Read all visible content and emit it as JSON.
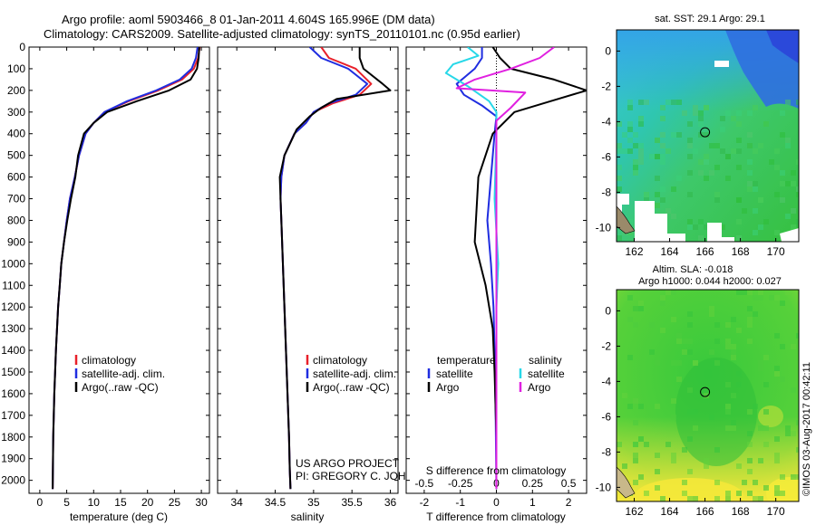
{
  "header": {
    "title_line1": "Argo profile: aoml 5903466_8 01-Jan-2011 4.604S 165.996E (DM data)",
    "title_line2": "Climatology: CARS2009. Satellite-adjusted climatology: synTS_20110101.nc (0.95d earlier)"
  },
  "colors": {
    "climatology": "#e8202a",
    "satellite": "#1f2de0",
    "argo": "#000000",
    "sal_satellite": "#27d8e8",
    "sal_argo": "#e020e0"
  },
  "chart_data": [
    {
      "id": "temperature",
      "type": "line",
      "xlabel": "temperature (deg C)",
      "ylabel": "",
      "xlim": [
        -2,
        31.5
      ],
      "ylim": [
        2060,
        0
      ],
      "xticks": [
        0,
        5,
        10,
        15,
        20,
        25,
        30
      ],
      "yticks": [
        0,
        100,
        200,
        300,
        400,
        500,
        600,
        700,
        800,
        900,
        1000,
        1100,
        1200,
        1300,
        1400,
        1500,
        1600,
        1700,
        1800,
        1900,
        2000
      ],
      "legend": [
        "climatology",
        "satellite-adj. clim.",
        "Argo(..raw -QC)"
      ],
      "series": [
        {
          "name": "climatology",
          "color_key": "climatology",
          "x": [
            29.7,
            29.4,
            28.6,
            26.4,
            22,
            16.5,
            12,
            10,
            8.5,
            7.3,
            6.5,
            5.6,
            5,
            4.5,
            4,
            3.7,
            3.4,
            3,
            2.7,
            2.5,
            2.4
          ],
          "y": [
            0,
            50,
            100,
            150,
            200,
            250,
            300,
            350,
            400,
            500,
            600,
            700,
            800,
            900,
            1000,
            1100,
            1200,
            1400,
            1600,
            1800,
            2040
          ]
        },
        {
          "name": "satellite-adj. clim.",
          "color_key": "satellite",
          "x": [
            29.3,
            29,
            28.2,
            26,
            21.6,
            16.2,
            12,
            10,
            8.5,
            7.3,
            6.5,
            5.6,
            5,
            4.5,
            4,
            3.7,
            3.4,
            3,
            2.7,
            2.5,
            2.4
          ],
          "y": [
            0,
            50,
            100,
            150,
            200,
            250,
            300,
            350,
            400,
            500,
            600,
            700,
            800,
            900,
            1000,
            1100,
            1200,
            1400,
            1600,
            1800,
            2040
          ]
        },
        {
          "name": "Argo(..raw -QC)",
          "color_key": "argo",
          "x": [
            29.6,
            29.5,
            29.2,
            28,
            24,
            18,
            12.5,
            10,
            8.2,
            7.1,
            6.6,
            5.8,
            5.1,
            4.5,
            4,
            3.7,
            3.4,
            3,
            2.7,
            2.5,
            2.4
          ],
          "y": [
            0,
            50,
            100,
            150,
            200,
            250,
            300,
            350,
            400,
            500,
            600,
            700,
            800,
            900,
            1000,
            1100,
            1200,
            1400,
            1600,
            1800,
            2040
          ]
        }
      ]
    },
    {
      "id": "salinity",
      "type": "line",
      "xlabel": "salinity",
      "xlim": [
        33.75,
        36.1
      ],
      "ylim": [
        2060,
        0
      ],
      "xticks": [
        34,
        34.5,
        35,
        35.5,
        36
      ],
      "xtick_labels": [
        "34",
        "34.5",
        "35",
        "35.5",
        "36"
      ],
      "legend": [
        "climatology",
        "satellite-adj. clim.",
        "Argo(..raw -QC)"
      ],
      "annotation": [
        "US ARGO PROJECT",
        "PI: GREGORY C. JOHNSON"
      ],
      "series": [
        {
          "name": "climatology",
          "color_key": "climatology",
          "x": [
            35.1,
            35.2,
            35.55,
            35.75,
            35.6,
            35.25,
            35,
            34.9,
            34.75,
            34.62,
            34.58,
            34.57,
            34.58,
            34.6,
            34.62,
            34.64,
            34.66,
            34.68,
            34.69,
            34.7
          ],
          "y": [
            0,
            50,
            100,
            170,
            220,
            260,
            300,
            350,
            400,
            500,
            600,
            700,
            800,
            1000,
            1200,
            1400,
            1600,
            1800,
            1950,
            2040
          ]
        },
        {
          "name": "satellite-adj. clim.",
          "color_key": "satellite",
          "x": [
            34.95,
            35.1,
            35.45,
            35.7,
            35.55,
            35.2,
            35,
            34.9,
            34.75,
            34.62,
            34.58,
            34.57,
            34.58,
            34.6,
            34.62,
            34.64,
            34.66,
            34.68,
            34.69,
            34.7
          ],
          "y": [
            0,
            50,
            100,
            170,
            220,
            260,
            300,
            350,
            400,
            500,
            600,
            700,
            800,
            1000,
            1200,
            1400,
            1600,
            1800,
            1950,
            2040
          ]
        },
        {
          "name": "Argo(..raw -QC)",
          "color_key": "argo",
          "x": [
            35.6,
            35.6,
            35.65,
            35.9,
            36,
            35.3,
            35.1,
            34.95,
            34.78,
            34.62,
            34.56,
            34.57,
            34.58,
            34.6,
            34.62,
            34.64,
            34.66,
            34.68,
            34.69,
            34.7
          ],
          "y": [
            0,
            50,
            100,
            170,
            200,
            240,
            280,
            320,
            380,
            500,
            600,
            700,
            800,
            1000,
            1200,
            1400,
            1600,
            1800,
            1950,
            2040
          ]
        }
      ]
    },
    {
      "id": "difference",
      "type": "line",
      "xlabel": "T difference from climatology",
      "xlabel_top": "S difference from climatology",
      "xlim": [
        -2.5,
        2.5
      ],
      "ylim": [
        2060,
        0
      ],
      "xticks": [
        -2,
        -1,
        0,
        1,
        2
      ],
      "top_xticks": [
        -0.5,
        -0.25,
        0,
        0.25,
        0.5
      ],
      "top_xtick_labels": [
        "-0.5",
        "-0.25",
        "0",
        "0.25",
        "0.5"
      ],
      "legend_temperature_title": "temperature",
      "legend_salinity_title": "salinity",
      "legend_temperature": [
        "satellite",
        "Argo"
      ],
      "legend_salinity": [
        "satellite",
        "Argo"
      ],
      "series": [
        {
          "name": "T satellite",
          "color_key": "satellite",
          "x": [
            -0.4,
            -0.4,
            -0.6,
            -1.1,
            -0.9,
            -0.4,
            0,
            -0.05,
            -0.15,
            -0.25,
            -0.15,
            -0.08,
            -0.05,
            -0.02,
            0
          ],
          "y": [
            0,
            50,
            100,
            170,
            220,
            270,
            320,
            400,
            600,
            800,
            1000,
            1200,
            1400,
            1700,
            2040
          ]
        },
        {
          "name": "T Argo",
          "color_key": "argo",
          "x": [
            -0.1,
            0.1,
            0.4,
            1.6,
            2.5,
            1.5,
            0.5,
            -0.1,
            -0.5,
            -0.6,
            -0.3,
            -0.1,
            -0.05,
            0,
            0
          ],
          "y": [
            0,
            50,
            100,
            150,
            200,
            250,
            300,
            400,
            600,
            900,
            1100,
            1300,
            1500,
            1800,
            2040
          ]
        },
        {
          "name": "S satellite",
          "color_key": "sal_satellite",
          "x": [
            -0.8,
            -0.5,
            -1.2,
            -1.4,
            -0.8,
            -0.2,
            0,
            0,
            -0.05,
            0.05,
            0,
            0,
            0,
            0
          ],
          "y": [
            0,
            40,
            80,
            120,
            180,
            250,
            300,
            400,
            700,
            1000,
            1200,
            1500,
            1800,
            2040
          ]
        },
        {
          "name": "S Argo",
          "color_key": "sal_argo",
          "x": [
            1.6,
            1.2,
            0.4,
            -0.6,
            -1.1,
            0.8,
            0.4,
            0,
            0,
            0,
            0,
            0
          ],
          "y": [
            0,
            50,
            100,
            150,
            190,
            210,
            280,
            340,
            450,
            800,
            1400,
            2040
          ]
        }
      ]
    }
  ],
  "map_sst": {
    "title": "sat. SST: 29.1 Argo: 29.1",
    "xticks": [
      162,
      164,
      166,
      168,
      170
    ],
    "yticks": [
      0,
      -2,
      -4,
      -6,
      -8,
      -10
    ],
    "xlim": [
      161,
      171.3
    ],
    "ylim": [
      -10.8,
      1.2
    ],
    "argo_point": [
      166,
      -4.6
    ]
  },
  "map_sla": {
    "title_line1": "Altim. SLA: -0.018",
    "title_line2": "Argo h1000: 0.044 h2000: 0.027",
    "xticks": [
      162,
      164,
      166,
      168,
      170
    ],
    "yticks": [
      0,
      -2,
      -4,
      -6,
      -8,
      -10
    ],
    "xlim": [
      161,
      171.3
    ],
    "ylim": [
      -10.8,
      1.2
    ],
    "argo_point": [
      166,
      -4.6
    ]
  },
  "footer": {
    "stamp": "©IMOS 03-Aug-2017 00:42:11"
  }
}
